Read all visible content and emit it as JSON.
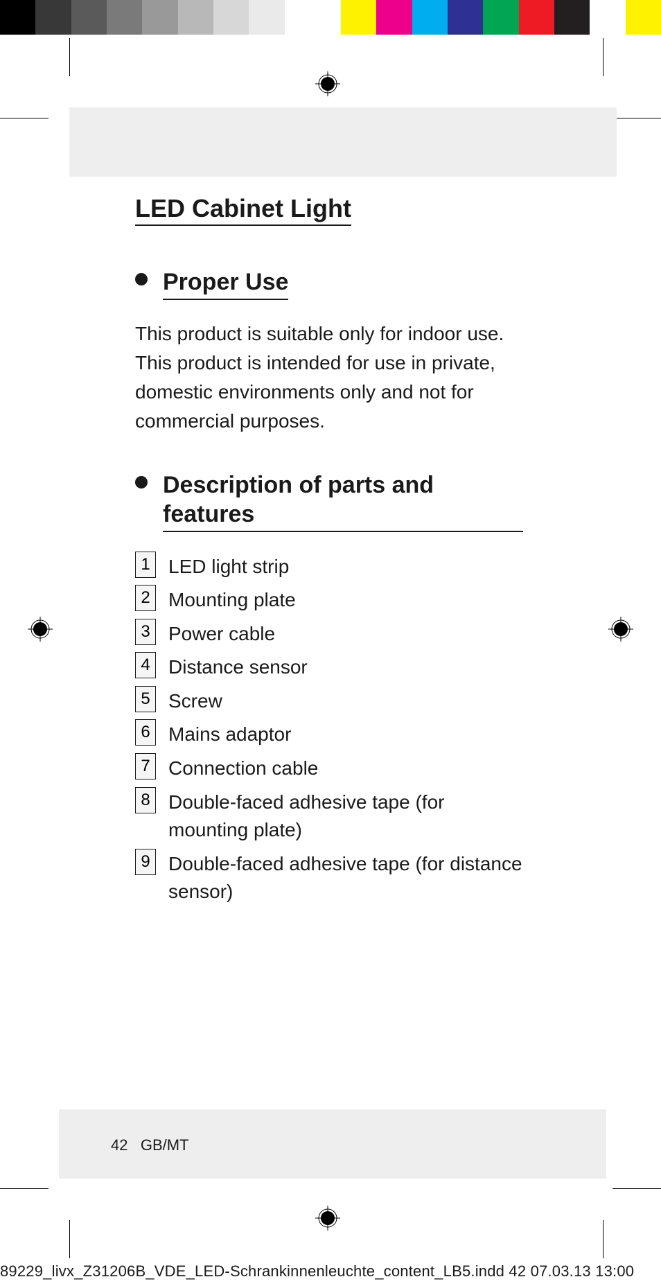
{
  "colorbar1": [
    "#000000",
    "#383838",
    "#5a5a5a",
    "#7a7a7a",
    "#999999",
    "#b8b8b8",
    "#d7d7d7",
    "#eaeaea",
    "#ffffff"
  ],
  "colorbar2": [
    "#fff200",
    "#ec008c",
    "#00aeef",
    "#2e3192",
    "#00a651",
    "#ed1c24",
    "#231f20",
    "#ffffff",
    "#fff200"
  ],
  "gray_block_color": "#eeeeee",
  "title": "LED Cabinet Light",
  "sections": {
    "proper_use": {
      "heading": "Proper Use",
      "body": "This product is suitable only for indoor use. This product is intended for use in private, domestic environments only and not for commercial purposes."
    },
    "parts": {
      "heading": "Description of parts and features",
      "items": [
        {
          "n": "1",
          "label": "LED light strip"
        },
        {
          "n": "2",
          "label": "Mounting plate"
        },
        {
          "n": "3",
          "label": "Power cable"
        },
        {
          "n": "4",
          "label": "Distance sensor"
        },
        {
          "n": "5",
          "label": "Screw"
        },
        {
          "n": "6",
          "label": "Mains adaptor"
        },
        {
          "n": "7",
          "label": "Connection cable"
        },
        {
          "n": "8",
          "label": "Double-faced adhesive tape (for mounting plate)"
        },
        {
          "n": "9",
          "label": "Double-faced adhesive tape (for distance sensor)"
        }
      ]
    }
  },
  "footer": {
    "page": "42",
    "lang": "GB/MT"
  },
  "filename": "89229_livx_Z31206B_VDE_LED-Schrankinnenleuchte_content_LB5.indd   42     07.03.13   13:00",
  "typography": {
    "title_fontsize": 36,
    "section_title_fontsize": 34,
    "body_fontsize": 28,
    "numbox_fontsize": 24,
    "footer_fontsize": 22
  }
}
